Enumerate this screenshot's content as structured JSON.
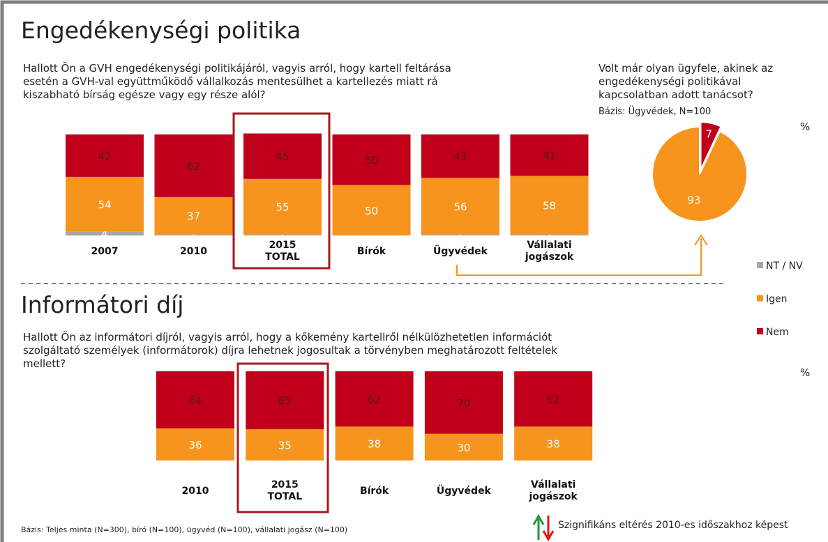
{
  "sections": [
    "Engedékenységi politika",
    "Informátori díj"
  ],
  "chart_data": [
    {
      "type": "stacked_bar",
      "title": "Hallott Ön a GVH engedékenységi politikájáról, vagyis arról, hogy kartell feltárása\nesetén a GVH-val együttműködő vállalkozás mentesülhet a kartellezés miatt rá\nkiszabható bírság egésze vagy egy része alól?",
      "unit": "%",
      "categories": [
        "2007",
        "2010",
        "2015\nTOTAL",
        "Bírók",
        "Ügyvédek",
        "Vállalati\njogászok"
      ],
      "series": [
        {
          "name": "NT / NV",
          "color": "#a6a6a6",
          "label_color": "#ffffff",
          "values": [
            4,
            1,
            1,
            0,
            1,
            1
          ]
        },
        {
          "name": "Igen",
          "color": "#f7941d",
          "label_color": "#ffffff",
          "values": [
            54,
            37,
            55,
            50,
            56,
            58
          ]
        },
        {
          "name": "Nem",
          "color": "#c0001a",
          "label_color": "#5a1a1a",
          "values": [
            42,
            62,
            45,
            50,
            43,
            41
          ]
        }
      ],
      "ylim": [
        0,
        100
      ]
    },
    {
      "type": "pie",
      "title": "Volt már olyan ügyfele, akinek az\nengedékenységi politikával\nkapcsolatban adott tanácsot?",
      "subtitle": "Bázis: Ügyvédek, N=100",
      "values": [
        7,
        93
      ],
      "colors": [
        "#c0001a",
        "#f7941d"
      ]
    },
    {
      "type": "stacked_bar",
      "title": "Hallott Ön az informátori díjról, vagyis arról, hogy a kőkemény kartellről nélkülözhetetlen információt\nszolgáltató személyek (informátorok) díjra lehetnek jogosultak a törvényben meghatározott feltételek\nmellett?",
      "unit": "%",
      "categories": [
        "2010",
        "2015\nTOTAL",
        "Bírók",
        "Ügyvédek",
        "Vállalati\njogászok"
      ],
      "series": [
        {
          "name": "Igen",
          "color": "#f7941d",
          "label_color": "#ffffff",
          "values": [
            36,
            35,
            38,
            30,
            38
          ]
        },
        {
          "name": "Nem",
          "color": "#c0001a",
          "label_color": "#5a1a1a",
          "values": [
            64,
            65,
            62,
            70,
            62
          ]
        }
      ],
      "ylim": [
        0,
        100
      ]
    }
  ],
  "footnote": "Bázis: Teljes minta (N=300), bíró (N=100), ügyvéd (N=100), vállalati jogász (N=100)",
  "significance_note": "Szignifikáns eltérés 2010-es időszakhoz képest"
}
